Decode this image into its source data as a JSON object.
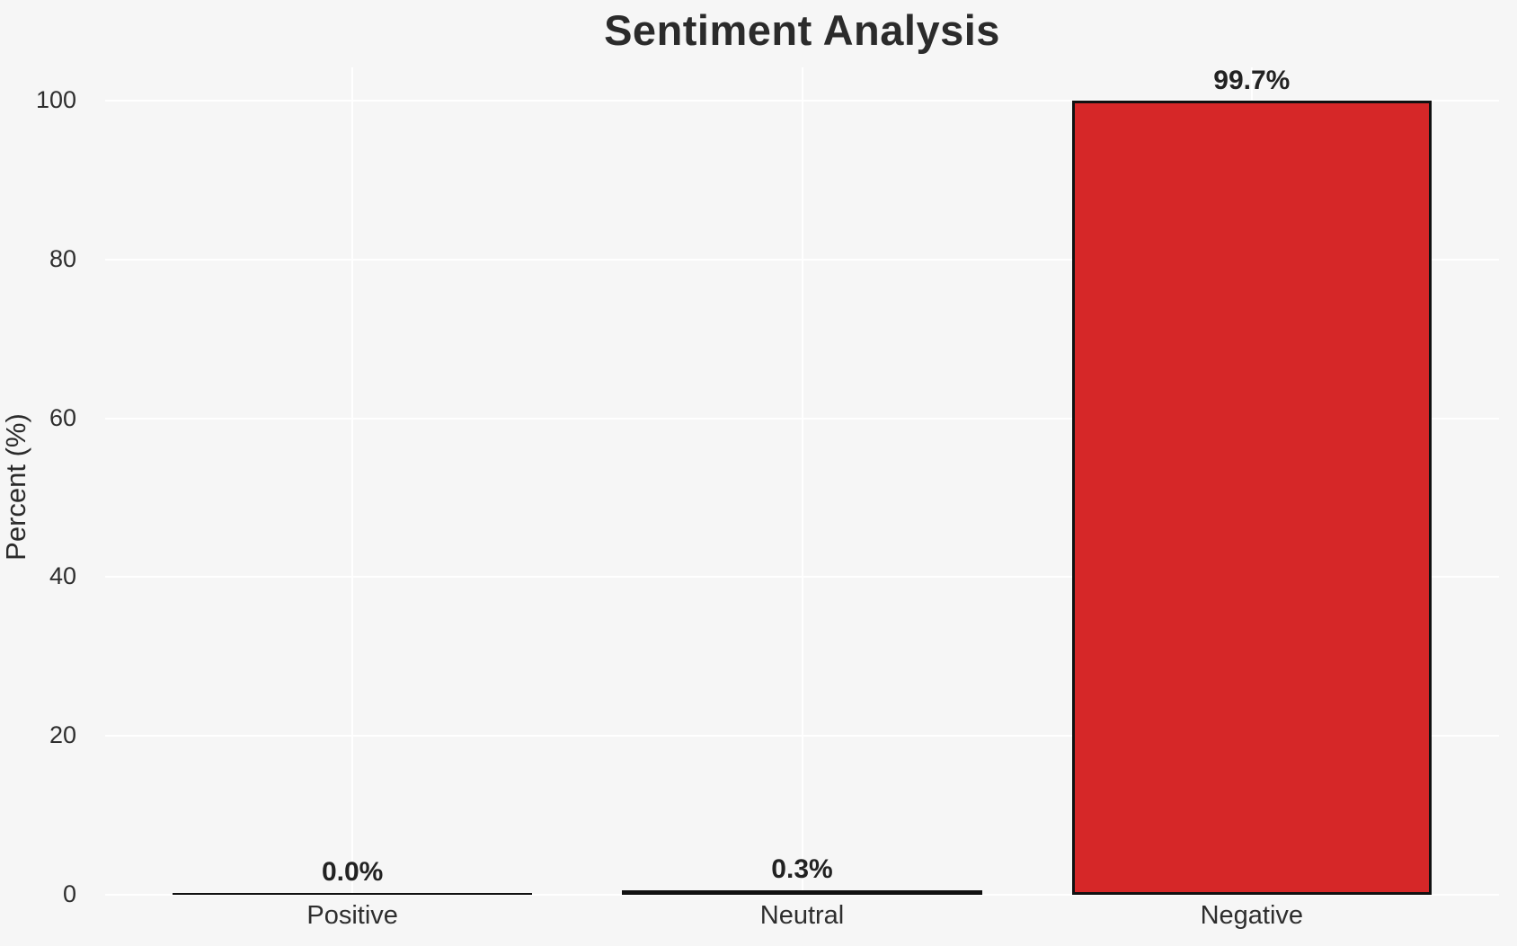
{
  "chart_data": {
    "type": "bar",
    "title": "Sentiment Analysis",
    "xlabel": "",
    "ylabel": "Percent (%)",
    "categories": [
      "Positive",
      "Neutral",
      "Negative"
    ],
    "series": [
      {
        "name": "Percent",
        "values": [
          0.0,
          0.3,
          99.7
        ]
      }
    ],
    "value_labels": [
      "0.0%",
      "0.3%",
      "99.7%"
    ],
    "ytick_labels": [
      "0",
      "20",
      "40",
      "60",
      "80",
      "100"
    ],
    "ytick_values": [
      0,
      20,
      40,
      60,
      80,
      100
    ],
    "ylim": [
      0,
      104.2
    ],
    "grid": "white gridlines, horizontal at yticks and vertical at category centers",
    "legend": "none",
    "colors": {
      "background": "#f6f6f6",
      "gridline": "#ffffff",
      "bar_fill": "#d62728",
      "bar_edge": "#111111",
      "title_text": "#2b2b2b",
      "tick_text": "#2e2e2e"
    }
  }
}
